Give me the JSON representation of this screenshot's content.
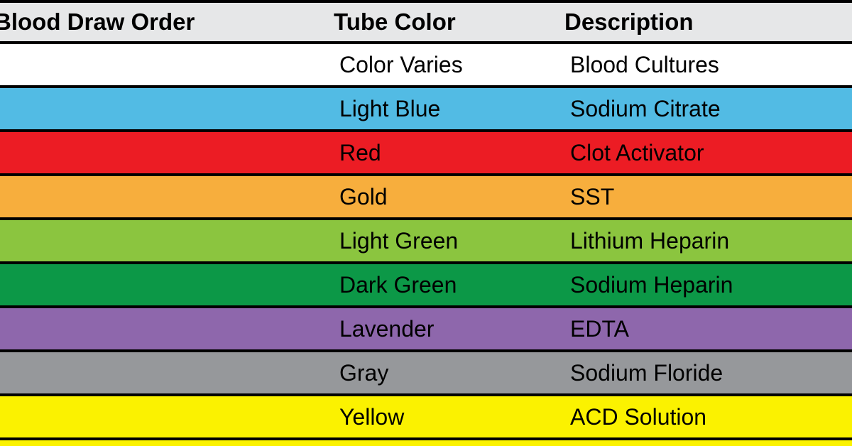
{
  "chart_data": {
    "type": "table",
    "columns": [
      "Blood Draw Order",
      "Tube Color",
      "Description"
    ],
    "rows": [
      {
        "tube_color": "Color Varies",
        "description": "Blood Cultures",
        "row_color": "#FFFFFF"
      },
      {
        "tube_color": "Light Blue",
        "description": "Sodium Citrate",
        "row_color": "#52BBE4"
      },
      {
        "tube_color": "Red",
        "description": "Clot Activator",
        "row_color": "#EC1C24"
      },
      {
        "tube_color": "Gold",
        "description": "SST",
        "row_color": "#F7AE3D"
      },
      {
        "tube_color": "Light Green",
        "description": "Lithium Heparin",
        "row_color": "#8BC53F"
      },
      {
        "tube_color": "Dark Green",
        "description": "Sodium Heparin",
        "row_color": "#0C9847"
      },
      {
        "tube_color": "Lavender",
        "description": "EDTA",
        "row_color": "#8E67AC"
      },
      {
        "tube_color": "Gray",
        "description": "Sodium Floride",
        "row_color": "#96989B"
      },
      {
        "tube_color": "Yellow",
        "description": "ACD Solution",
        "row_color": "#FBF200"
      }
    ],
    "layout": {
      "grid": "horizontal-separators-only",
      "legend_position": "none"
    }
  },
  "colors": {
    "header_bg": "#E6E7E8",
    "separator": "#000000",
    "text": "#000000",
    "bottom_sliver": "#FBF200"
  }
}
